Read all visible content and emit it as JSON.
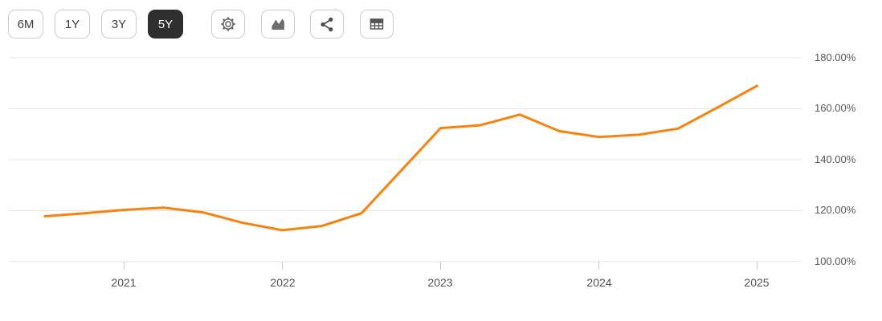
{
  "toolbar": {
    "range_buttons": [
      {
        "label": "6M",
        "selected": false
      },
      {
        "label": "1Y",
        "selected": false
      },
      {
        "label": "3Y",
        "selected": false
      },
      {
        "label": "5Y",
        "selected": true
      }
    ],
    "icon_buttons": [
      {
        "name": "gear-icon"
      },
      {
        "name": "area-chart-icon"
      },
      {
        "name": "share-icon"
      },
      {
        "name": "table-icon"
      }
    ],
    "selected_bg": "#2f2f2f"
  },
  "chart_data": {
    "type": "line",
    "title": "",
    "xlabel": "",
    "ylabel": "",
    "grid": true,
    "legend": false,
    "line_color": "#f7820e",
    "gridline_color": "#e6e6e6",
    "tick_color": "#c9c9c9",
    "ylim": [
      100,
      180
    ],
    "xlim": [
      2020.27,
      2025.28
    ],
    "x": [
      2020.5,
      2020.75,
      2021,
      2021.25,
      2021.5,
      2021.75,
      2022,
      2022.25,
      2022.5,
      2022.75,
      2023,
      2023.25,
      2023.5,
      2023.75,
      2024,
      2024.25,
      2024.5,
      2024.75,
      2025
    ],
    "series": [
      {
        "name": "percent-series",
        "values": [
          117.8,
          119.0,
          120.3,
          121.2,
          119.3,
          115.2,
          112.3,
          114.0,
          119.0,
          135.7,
          152.4,
          153.5,
          157.7,
          151.2,
          148.9,
          149.8,
          152.2,
          160.5,
          169.0
        ]
      }
    ],
    "x_tick_values": [
      2021,
      2022,
      2023,
      2024,
      2025
    ],
    "x_tick_labels": [
      "2021",
      "2022",
      "2023",
      "2024",
      "2025"
    ],
    "y_tick_values": [
      180,
      160,
      140,
      120,
      100
    ],
    "y_tick_labels": [
      "180.00%",
      "160.00%",
      "140.00%",
      "120.00%",
      "100.00%"
    ]
  }
}
